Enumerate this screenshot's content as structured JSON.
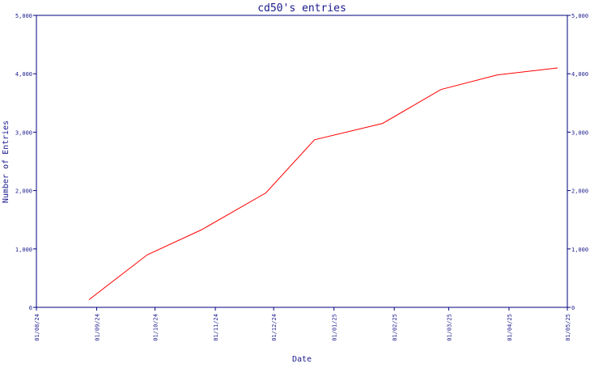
{
  "chart_data": {
    "type": "line",
    "title": "cd50's entries",
    "xlabel": "Date",
    "ylabel": "Number of Entries",
    "x_tick_labels": [
      "01/08/24",
      "01/09/24",
      "01/10/24",
      "01/11/24",
      "01/12/24",
      "01/01/25",
      "01/02/25",
      "01/03/25",
      "01/04/25",
      "01/05/25"
    ],
    "y_tick_labels": [
      "0",
      "1,000",
      "2,000",
      "3,000",
      "4,000",
      "5,000"
    ],
    "y_ticks": [
      0,
      1000,
      2000,
      3000,
      4000,
      5000
    ],
    "ylim": [
      0,
      5000
    ],
    "x_range": [
      "2024-08-01",
      "2025-05-01"
    ],
    "series": [
      {
        "color": "#ff0000",
        "points": [
          {
            "x": "2024-08-28",
            "y": 130
          },
          {
            "x": "2024-09-27",
            "y": 900
          },
          {
            "x": "2024-10-25",
            "y": 1330
          },
          {
            "x": "2024-11-27",
            "y": 1960
          },
          {
            "x": "2024-12-22",
            "y": 2870
          },
          {
            "x": "2025-01-26",
            "y": 3150
          },
          {
            "x": "2025-02-25",
            "y": 3730
          },
          {
            "x": "2025-03-26",
            "y": 3980
          },
          {
            "x": "2025-04-26",
            "y": 4100
          }
        ]
      }
    ],
    "grid": false,
    "axis_color": "#00007f",
    "right_axis_mirrors_left": true
  }
}
